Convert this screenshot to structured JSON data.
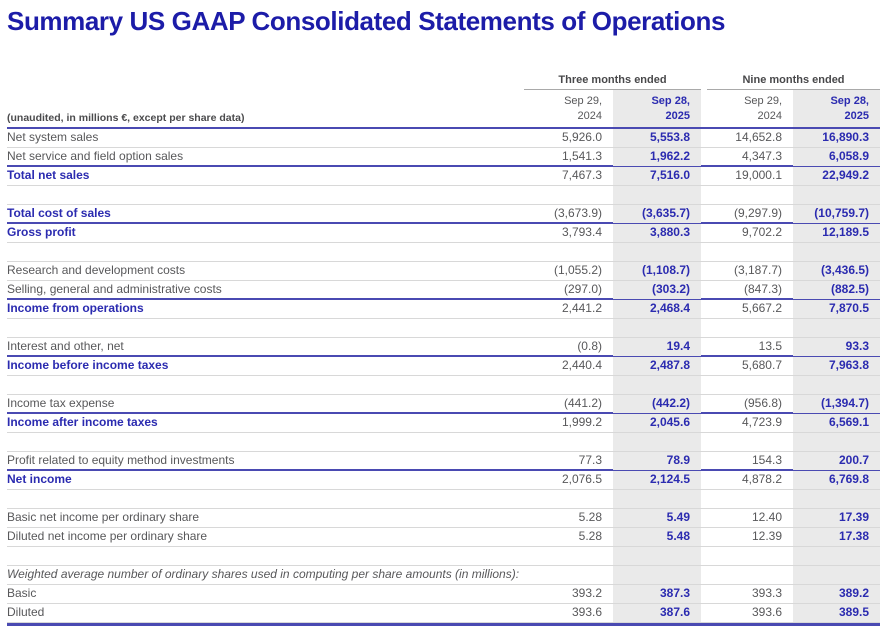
{
  "title": "Summary US GAAP Consolidated Statements of Operations",
  "table": {
    "unit_note": "(unaudited, in millions €, except per share data)",
    "col_groups": [
      {
        "label": "Three months ended"
      },
      {
        "label": "Nine months ended"
      }
    ],
    "columns": [
      {
        "line1": "Sep 29,",
        "line2": "2024",
        "highlight": false
      },
      {
        "line1": "Sep 28,",
        "line2": "2025",
        "highlight": true
      },
      {
        "line1": "Sep 29,",
        "line2": "2024",
        "highlight": false
      },
      {
        "line1": "Sep 28,",
        "line2": "2025",
        "highlight": true
      }
    ],
    "rows": [
      {
        "label": "Net system sales",
        "style": "regular",
        "values": [
          "5,926.0",
          "5,553.8",
          "14,652.8",
          "16,890.3"
        ]
      },
      {
        "label": "Net service and field option sales",
        "style": "regular",
        "values": [
          "1,541.3",
          "1,962.2",
          "4,347.3",
          "6,058.9"
        ]
      },
      {
        "label": "Total net sales",
        "style": "total",
        "topline": true,
        "values": [
          "7,467.3",
          "7,516.0",
          "19,000.1",
          "22,949.2"
        ]
      },
      {
        "style": "blank"
      },
      {
        "label": "Total cost of sales",
        "style": "total",
        "values": [
          "(3,673.9)",
          "(3,635.7)",
          "(9,297.9)",
          "(10,759.7)"
        ]
      },
      {
        "label": "Gross profit",
        "style": "total",
        "topline": true,
        "values": [
          "3,793.4",
          "3,880.3",
          "9,702.2",
          "12,189.5"
        ]
      },
      {
        "style": "blank"
      },
      {
        "label": "Research and development costs",
        "style": "regular",
        "values": [
          "(1,055.2)",
          "(1,108.7)",
          "(3,187.7)",
          "(3,436.5)"
        ]
      },
      {
        "label": "Selling, general and administrative costs",
        "style": "regular",
        "values": [
          "(297.0)",
          "(303.2)",
          "(847.3)",
          "(882.5)"
        ]
      },
      {
        "label": "Income from operations",
        "style": "total",
        "topline": true,
        "values": [
          "2,441.2",
          "2,468.4",
          "5,667.2",
          "7,870.5"
        ]
      },
      {
        "style": "blank"
      },
      {
        "label": "Interest and other, net",
        "style": "regular",
        "values": [
          "(0.8)",
          "19.4",
          "13.5",
          "93.3"
        ]
      },
      {
        "label": "Income before income taxes",
        "style": "total",
        "topline": true,
        "values": [
          "2,440.4",
          "2,487.8",
          "5,680.7",
          "7,963.8"
        ]
      },
      {
        "style": "blank"
      },
      {
        "label": "Income tax expense",
        "style": "regular",
        "values": [
          "(441.2)",
          "(442.2)",
          "(956.8)",
          "(1,394.7)"
        ]
      },
      {
        "label": "Income after income taxes",
        "style": "total",
        "topline": true,
        "values": [
          "1,999.2",
          "2,045.6",
          "4,723.9",
          "6,569.1"
        ]
      },
      {
        "style": "blank"
      },
      {
        "label": "Profit related to equity method investments",
        "style": "regular",
        "values": [
          "77.3",
          "78.9",
          "154.3",
          "200.7"
        ]
      },
      {
        "label": "Net income",
        "style": "total",
        "topline": true,
        "values": [
          "2,076.5",
          "2,124.5",
          "4,878.2",
          "6,769.8"
        ]
      },
      {
        "style": "blank"
      },
      {
        "label": "Basic net income per ordinary share",
        "style": "regular",
        "values": [
          "5.28",
          "5.49",
          "12.40",
          "17.39"
        ]
      },
      {
        "label": "Diluted net income per ordinary share",
        "style": "regular",
        "values": [
          "5.28",
          "5.48",
          "12.39",
          "17.38"
        ]
      },
      {
        "style": "blank"
      },
      {
        "label": "Weighted average number of ordinary shares used in computing per share amounts (in millions):",
        "style": "section-note"
      },
      {
        "label": "Basic",
        "style": "regular",
        "values": [
          "393.2",
          "387.3",
          "393.3",
          "389.2"
        ]
      },
      {
        "label": "Diluted",
        "style": "regular",
        "values": [
          "393.6",
          "387.6",
          "393.6",
          "389.5"
        ]
      }
    ]
  },
  "colors": {
    "title_blue": "#1c1ca8",
    "accent_blue": "#2b2bb0",
    "rule_dark_blue": "#4a4ab2",
    "rule_light": "#d8d8d8",
    "group_rule": "#a9a9a9",
    "text_gray": "#58585a",
    "note_gray": "#4b4b4d",
    "highlight_bg": "#eaeaea"
  }
}
